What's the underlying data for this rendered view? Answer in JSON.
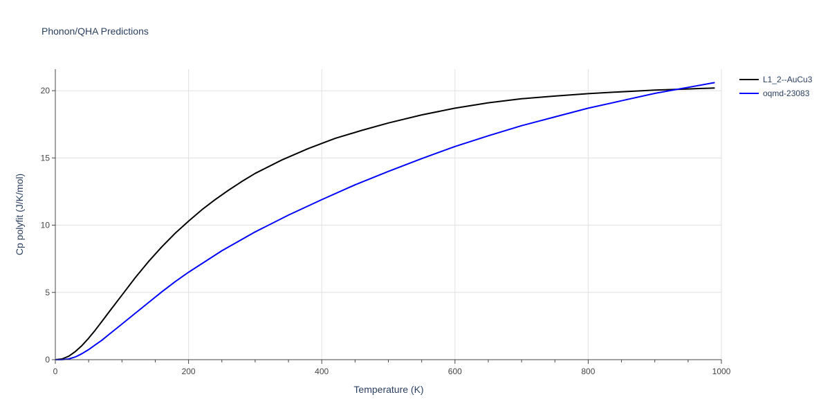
{
  "chart_data": {
    "type": "line",
    "title": "Phonon/QHA Predictions",
    "xlabel": "Temperature (K)",
    "ylabel": "Cp polyfit (J/K/mol)",
    "xlim": [
      0,
      1000
    ],
    "ylim": [
      0,
      21.6
    ],
    "xticks": [
      0,
      200,
      400,
      600,
      800,
      1000
    ],
    "yticks": [
      0,
      5,
      10,
      15,
      20
    ],
    "grid": true,
    "legend_position": "top-right",
    "series": [
      {
        "name": "L1_2--AuCu3",
        "color": "#000000",
        "x": [
          0,
          10,
          20,
          30,
          40,
          50,
          60,
          70,
          80,
          100,
          120,
          140,
          160,
          180,
          200,
          220,
          240,
          260,
          280,
          300,
          340,
          380,
          420,
          460,
          500,
          550,
          600,
          650,
          700,
          750,
          800,
          850,
          900,
          950,
          990
        ],
        "y": [
          0,
          0.05,
          0.25,
          0.6,
          1.05,
          1.6,
          2.2,
          2.85,
          3.5,
          4.8,
          6.1,
          7.3,
          8.4,
          9.4,
          10.3,
          11.15,
          11.9,
          12.6,
          13.25,
          13.85,
          14.85,
          15.7,
          16.45,
          17.05,
          17.6,
          18.2,
          18.7,
          19.1,
          19.4,
          19.6,
          19.78,
          19.92,
          20.04,
          20.13,
          20.2
        ]
      },
      {
        "name": "oqmd-23083",
        "color": "#0000ff",
        "x": [
          0,
          10,
          20,
          30,
          40,
          50,
          60,
          70,
          80,
          100,
          120,
          140,
          160,
          180,
          200,
          250,
          300,
          350,
          400,
          450,
          500,
          550,
          600,
          650,
          700,
          750,
          800,
          850,
          900,
          950,
          990
        ],
        "y": [
          0,
          0.0,
          0.05,
          0.2,
          0.45,
          0.75,
          1.1,
          1.45,
          1.85,
          2.65,
          3.45,
          4.25,
          5.05,
          5.8,
          6.5,
          8.1,
          9.5,
          10.75,
          11.9,
          13.0,
          14.0,
          14.95,
          15.85,
          16.65,
          17.4,
          18.05,
          18.7,
          19.25,
          19.8,
          20.25,
          20.6
        ]
      }
    ]
  }
}
